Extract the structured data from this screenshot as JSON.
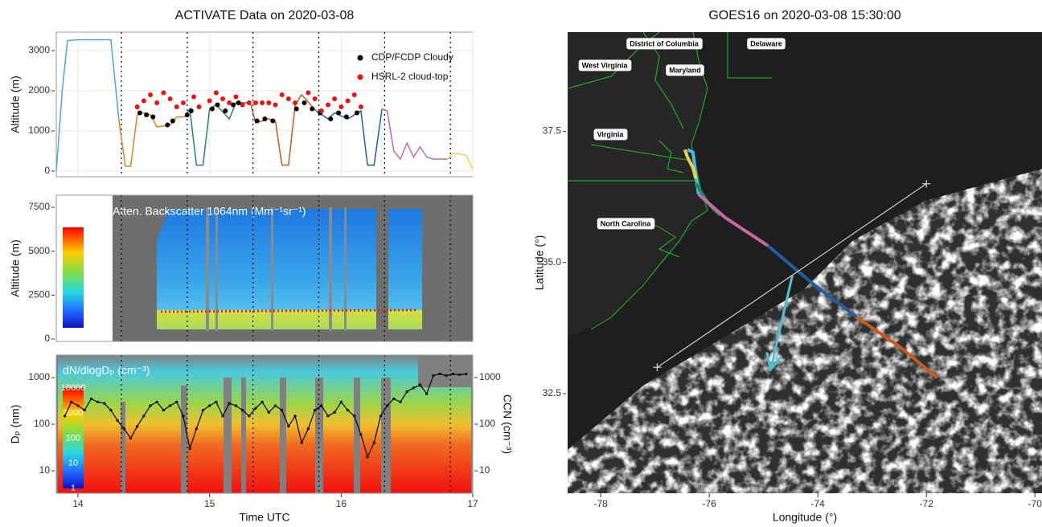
{
  "chart_data": [
    {
      "type": "line",
      "title": "ACTIVATE Data on 2020-03-08",
      "ylabel": "Altitude (m)",
      "xlim": [
        13.835,
        17
      ],
      "ylim": [
        -140,
        3460
      ],
      "xticks": [
        14,
        15,
        16,
        17
      ],
      "yticks": [
        0,
        1000,
        2000,
        3000
      ],
      "grid": true,
      "legend": "top-right",
      "vlines": [
        14.33,
        14.83,
        15.33,
        15.83,
        16.33,
        16.83
      ],
      "series": [
        {
          "color": "#4fa3d8",
          "x": [
            13.835,
            13.88,
            13.92,
            14.0,
            14.25,
            14.31
          ],
          "values": [
            0,
            2000,
            3250,
            3270,
            3270,
            1300
          ]
        },
        {
          "color": "#d9861c",
          "x": [
            14.31,
            14.36,
            14.4,
            14.45,
            14.5,
            14.55,
            14.6,
            14.7,
            14.75,
            14.81
          ],
          "values": [
            1300,
            120,
            120,
            1400,
            1450,
            1400,
            1100,
            1150,
            1350,
            1350
          ]
        },
        {
          "color": "#1d8a6a",
          "x": [
            14.81,
            14.85,
            14.9,
            14.95,
            15.0,
            15.05,
            15.15,
            15.2,
            15.31
          ],
          "values": [
            1350,
            1550,
            150,
            150,
            1550,
            1650,
            1300,
            1700,
            1700
          ]
        },
        {
          "color": "#c85a1a",
          "x": [
            15.31,
            15.35,
            15.45,
            15.5,
            15.55,
            15.6,
            15.65,
            15.7,
            15.81
          ],
          "values": [
            1700,
            1200,
            1300,
            1250,
            150,
            150,
            1650,
            1900,
            1500
          ]
        },
        {
          "color": "#1f5fa0",
          "x": [
            15.81,
            15.9,
            15.95,
            16.05,
            16.15,
            16.2,
            16.25,
            16.31
          ],
          "values": [
            1500,
            1300,
            1450,
            1300,
            1500,
            150,
            150,
            1550
          ]
        },
        {
          "color": "#c56aa0",
          "x": [
            16.31,
            16.35,
            16.4,
            16.45,
            16.5,
            16.55,
            16.6,
            16.65,
            16.7,
            16.81
          ],
          "values": [
            1550,
            1500,
            500,
            300,
            700,
            350,
            600,
            350,
            300,
            300
          ]
        },
        {
          "color": "#e8d44a",
          "x": [
            16.81,
            16.85,
            16.95,
            17.0
          ],
          "values": [
            300,
            450,
            400,
            50
          ]
        },
        {
          "type": "scatter",
          "name": "CDP/FCDP Cloudy",
          "color": "#000000",
          "x": [
            14.47,
            14.52,
            14.57,
            14.68,
            14.72,
            14.83,
            14.86,
            15.02,
            15.06,
            15.12,
            15.18,
            15.22,
            15.36,
            15.42,
            15.48,
            15.66,
            15.72,
            15.78,
            15.84,
            15.92,
            15.98,
            16.04,
            16.12
          ],
          "values": [
            1450,
            1400,
            1350,
            1150,
            1250,
            1400,
            1500,
            1550,
            1650,
            1500,
            1650,
            1700,
            1250,
            1300,
            1250,
            1550,
            1700,
            1550,
            1450,
            1300,
            1450,
            1350,
            1450
          ]
        },
        {
          "type": "scatter",
          "name": "HSRL-2 cloud-top",
          "color": "#ee1111",
          "x": [
            14.45,
            14.5,
            14.55,
            14.6,
            14.65,
            14.7,
            14.75,
            14.8,
            14.88,
            14.92,
            15.0,
            15.05,
            15.1,
            15.15,
            15.2,
            15.25,
            15.3,
            15.35,
            15.4,
            15.45,
            15.5,
            15.55,
            15.6,
            15.65,
            15.75,
            15.8,
            15.85,
            15.9,
            15.95,
            16.0,
            16.05,
            16.1,
            16.15
          ],
          "values": [
            1600,
            1750,
            1900,
            1700,
            1950,
            1800,
            1600,
            1700,
            1850,
            1600,
            1750,
            1950,
            1800,
            1700,
            1850,
            1650,
            1700,
            1700,
            1700,
            1700,
            1650,
            1900,
            1800,
            1700,
            1950,
            1800,
            1500,
            1650,
            1800,
            1600,
            1750,
            1900,
            1600
          ]
        }
      ]
    },
    {
      "type": "heatmap",
      "label": "Atten. Backscatter 1064nm (Mm⁻¹sr⁻¹)",
      "ylabel": "Altitude (m)",
      "ylim": [
        -137,
        8186
      ],
      "yticks": [
        0,
        2500,
        5000,
        7500
      ]
    },
    {
      "type": "heatmap",
      "label": "dN/dlogDₚ (cm⁻³)",
      "ylabel": "Dₚ (nm)",
      "y2label": "CCN (cm⁻³)",
      "xlabel": "Time UTC",
      "xlim": [
        13.835,
        17
      ],
      "xticks": [
        14,
        15,
        16,
        17
      ],
      "log": true,
      "ylim": [
        3.3,
        3040
      ],
      "yticks": [
        10,
        100,
        1000
      ],
      "y2lim": [
        3.3,
        3040
      ],
      "y2ticks": [
        10,
        100,
        1000
      ],
      "clim": [
        1,
        10000
      ],
      "colorbar_ticks": [
        1,
        10,
        100,
        1000,
        10000
      ],
      "series": [
        {
          "axis": "y2",
          "color": "#000000",
          "x": [
            13.9,
            13.95,
            14.0,
            14.05,
            14.1,
            14.15,
            14.2,
            14.25,
            14.3,
            14.35,
            14.4,
            14.45,
            14.5,
            14.55,
            14.6,
            14.65,
            14.7,
            14.75,
            14.8,
            14.85,
            14.9,
            14.95,
            15.0,
            15.05,
            15.1,
            15.15,
            15.2,
            15.25,
            15.3,
            15.35,
            15.4,
            15.45,
            15.5,
            15.55,
            15.6,
            15.65,
            15.7,
            15.75,
            15.8,
            15.85,
            15.9,
            15.95,
            16.0,
            16.05,
            16.1,
            16.15,
            16.2,
            16.25,
            16.3,
            16.35,
            16.4,
            16.45,
            16.5,
            16.55,
            16.6,
            16.65,
            16.7,
            16.75,
            16.8,
            16.85,
            16.9,
            16.95
          ],
          "values": [
            150,
            300,
            250,
            200,
            350,
            300,
            280,
            200,
            120,
            80,
            50,
            90,
            150,
            250,
            300,
            200,
            250,
            300,
            150,
            30,
            80,
            200,
            250,
            300,
            150,
            280,
            250,
            200,
            150,
            220,
            300,
            180,
            250,
            200,
            90,
            150,
            40,
            80,
            200,
            250,
            150,
            180,
            300,
            200,
            150,
            60,
            20,
            40,
            150,
            250,
            350,
            300,
            500,
            600,
            700,
            450,
            1100,
            1200,
            1100,
            1200,
            1150,
            1200
          ]
        }
      ]
    },
    {
      "type": "map",
      "title": "GOES16 on 2020-03-08 15:30:00",
      "xlabel": "Longitude (°)",
      "ylabel": "Latitude (°)",
      "xlim": [
        -78.61,
        -69.87
      ],
      "ylim": [
        30.6,
        39.39
      ],
      "xticks": [
        -78,
        -76,
        -74,
        -72,
        -70
      ],
      "yticks": [
        32.5,
        {
          "value": 35,
          "label": "35.0"
        },
        37.5
      ],
      "regions": [
        "District of Columbia",
        "Delaware",
        "West Virginia",
        "Maryland",
        "Virginia",
        "North Carolina"
      ],
      "series": [
        {
          "color": "#4fb8e0",
          "x": [
            -76.4,
            -76.3,
            -76.25,
            -76.2
          ],
          "values": [
            37.15,
            37.1,
            36.7,
            36.3
          ]
        },
        {
          "color": "#e8d44a",
          "x": [
            -76.45,
            -76.4,
            -76.3,
            -76.25
          ],
          "values": [
            37.15,
            37.0,
            36.8,
            36.6
          ]
        },
        {
          "color": "#1d8a6a",
          "x": [
            -76.25,
            -76.0,
            -75.8
          ],
          "values": [
            36.5,
            36.1,
            35.9
          ]
        },
        {
          "color": "#c56aa0",
          "x": [
            -76.2,
            -75.7,
            -74.92
          ],
          "values": [
            36.3,
            35.85,
            35.32
          ]
        },
        {
          "color": "#1f5fa0",
          "x": [
            -74.92,
            -74.1,
            -73.29
          ],
          "values": [
            35.32,
            34.6,
            33.96
          ]
        },
        {
          "color": "#c85a1a",
          "x": [
            -73.29,
            -72.5,
            -71.8
          ],
          "values": [
            33.96,
            33.4,
            32.8
          ]
        },
        {
          "type": "arrow",
          "color": "#4ec3d0",
          "x": [
            -74.47,
            -74.87
          ],
          "values": [
            34.75,
            32.96
          ]
        },
        {
          "type": "crosses",
          "color": "#cccccc",
          "x": [
            -76.96,
            -72.0
          ],
          "values": [
            33.0,
            36.5
          ]
        }
      ]
    }
  ]
}
